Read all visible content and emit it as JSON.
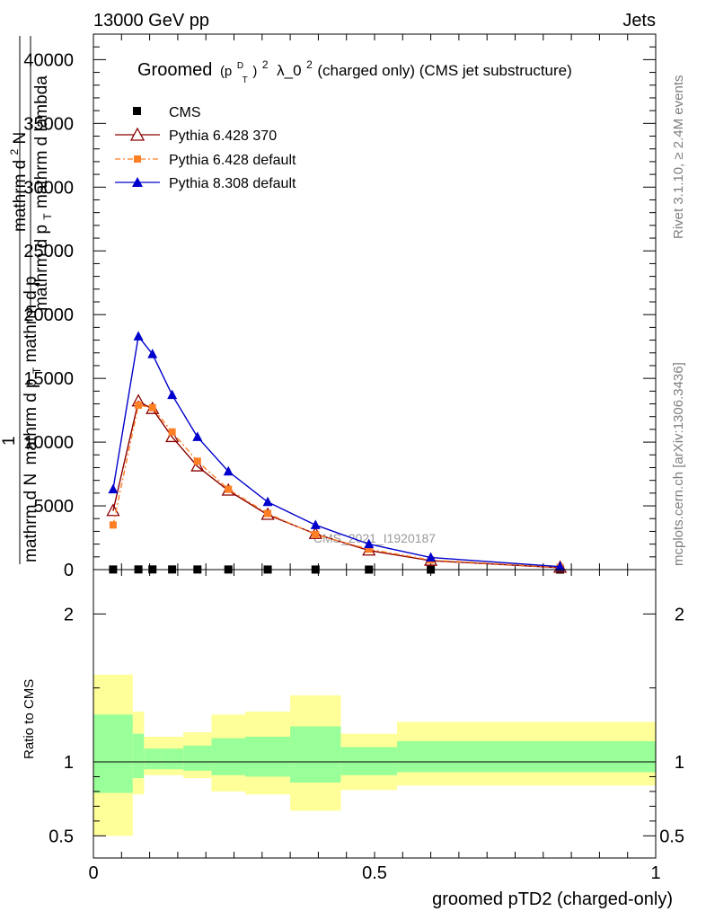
{
  "header": {
    "left": "13000 GeV pp",
    "right": "Jets"
  },
  "side": {
    "top": "Rivet 3.1.10, ≥ 2.4M events",
    "bottom": "mcplots.cern.ch [arXiv:1306.3436]"
  },
  "title": {
    "prefix": "Groomed",
    "open": "(p",
    "sup_d": "D",
    "sub_t": "T",
    "close": ")",
    "exp2": "2",
    "lambda_text": "λ_0",
    "exp2b": "2",
    "suffix": " (charged only) (CMS jet substructure)"
  },
  "watermark": "CMS_2021_I1920187",
  "colors": {
    "cms": "#000000",
    "py6_370": "#8b0000",
    "py6_default": "#ff7f24",
    "py8_default": "#0000cd",
    "band_inner": "#99ff99",
    "band_outer": "#ffff99"
  },
  "chart_data": [
    {
      "type": "line",
      "ylabel": "1 / mathrm d N mathrm d N / mathrm d p_T mathrm d p_T mathrm d lambda",
      "ylabel_parts": {
        "frac_top": "mathrm d",
        "frac_top_sup": "2",
        "frac_top_end": "N",
        "frac_bottom": "mathrm d p",
        "frac_bottom_sub": "T",
        "frac_bottom_end": " mathrm d lambda",
        "one_over": "1",
        "lead_top": "1",
        "lead_bottom": "mathrm d N",
        "inner_bottom": "mathrm d p",
        "inner_bottom_sub": "T",
        "inner_bottom_end": " mathrm d p",
        "inner_bottom_sub2": "T",
        "inner_bottom_end2": " mathrm d lambda"
      },
      "xlim": [
        0,
        1
      ],
      "ylim": [
        0,
        42000
      ],
      "yticks": [
        0,
        5000,
        10000,
        15000,
        20000,
        25000,
        30000,
        35000,
        40000
      ],
      "ytick_labels": [
        "0",
        "5000",
        "10000",
        "15000",
        "20000",
        "25000",
        "30000",
        "35000",
        "40000"
      ],
      "legend_position": "top-left",
      "series": [
        {
          "name": "CMS",
          "marker": "square",
          "x": [
            0.035,
            0.08,
            0.105,
            0.14,
            0.185,
            0.24,
            0.31,
            0.395,
            0.49,
            0.6,
            0.83
          ],
          "y": [
            10,
            14,
            14,
            12,
            10,
            8,
            6,
            4,
            2,
            1,
            0.5
          ]
        },
        {
          "name": "Pythia 6.428 370",
          "marker": "triangle-open",
          "x": [
            0.035,
            0.08,
            0.105,
            0.14,
            0.185,
            0.24,
            0.31,
            0.395,
            0.49,
            0.6,
            0.83
          ],
          "y": [
            4600,
            13200,
            12600,
            10400,
            8100,
            6200,
            4300,
            2800,
            1500,
            700,
            150
          ]
        },
        {
          "name": "Pythia 6.428 default",
          "marker": "square-small",
          "dashed": true,
          "x": [
            0.035,
            0.08,
            0.105,
            0.14,
            0.185,
            0.24,
            0.31,
            0.395,
            0.49,
            0.6,
            0.83
          ],
          "y": [
            3500,
            12900,
            12700,
            10800,
            8500,
            6300,
            4400,
            2750,
            1600,
            750,
            170
          ]
        },
        {
          "name": "Pythia 8.308 default",
          "marker": "triangle",
          "x": [
            0.035,
            0.08,
            0.105,
            0.14,
            0.185,
            0.24,
            0.31,
            0.395,
            0.49,
            0.6,
            0.83
          ],
          "y": [
            6300,
            18300,
            16900,
            13700,
            10400,
            7700,
            5300,
            3500,
            2000,
            950,
            230
          ]
        }
      ]
    },
    {
      "type": "area",
      "ylabel": "Ratio to CMS",
      "xlabel": "groomed pTD2 (charged-only)",
      "xlim": [
        0,
        1
      ],
      "ylim": [
        0.35,
        2.3
      ],
      "yticks": [
        0.5,
        1,
        2
      ],
      "ytick_labels": [
        "0.5",
        "1",
        "2"
      ],
      "xticks": [
        0,
        0.5,
        1
      ],
      "xtick_labels": [
        "0",
        "0.5",
        "1"
      ],
      "reference": 1,
      "bins": [
        {
          "x0": 0.0,
          "x1": 0.07,
          "outer": [
            0.5,
            1.59
          ],
          "inner": [
            0.79,
            1.32
          ]
        },
        {
          "x0": 0.07,
          "x1": 0.09,
          "outer": [
            0.78,
            1.34
          ],
          "inner": [
            0.89,
            1.19
          ]
        },
        {
          "x0": 0.09,
          "x1": 0.12,
          "outer": [
            0.91,
            1.17
          ],
          "inner": [
            0.95,
            1.09
          ]
        },
        {
          "x0": 0.12,
          "x1": 0.16,
          "outer": [
            0.91,
            1.17
          ],
          "inner": [
            0.95,
            1.09
          ]
        },
        {
          "x0": 0.16,
          "x1": 0.21,
          "outer": [
            0.89,
            1.2
          ],
          "inner": [
            0.94,
            1.11
          ]
        },
        {
          "x0": 0.21,
          "x1": 0.27,
          "outer": [
            0.8,
            1.32
          ],
          "inner": [
            0.91,
            1.16
          ]
        },
        {
          "x0": 0.27,
          "x1": 0.35,
          "outer": [
            0.78,
            1.34
          ],
          "inner": [
            0.9,
            1.17
          ]
        },
        {
          "x0": 0.35,
          "x1": 0.44,
          "outer": [
            0.67,
            1.45
          ],
          "inner": [
            0.86,
            1.24
          ]
        },
        {
          "x0": 0.44,
          "x1": 0.54,
          "outer": [
            0.81,
            1.19
          ],
          "inner": [
            0.91,
            1.1
          ]
        },
        {
          "x0": 0.54,
          "x1": 1.0,
          "outer": [
            0.84,
            1.27
          ],
          "inner": [
            0.93,
            1.14
          ]
        }
      ]
    }
  ]
}
